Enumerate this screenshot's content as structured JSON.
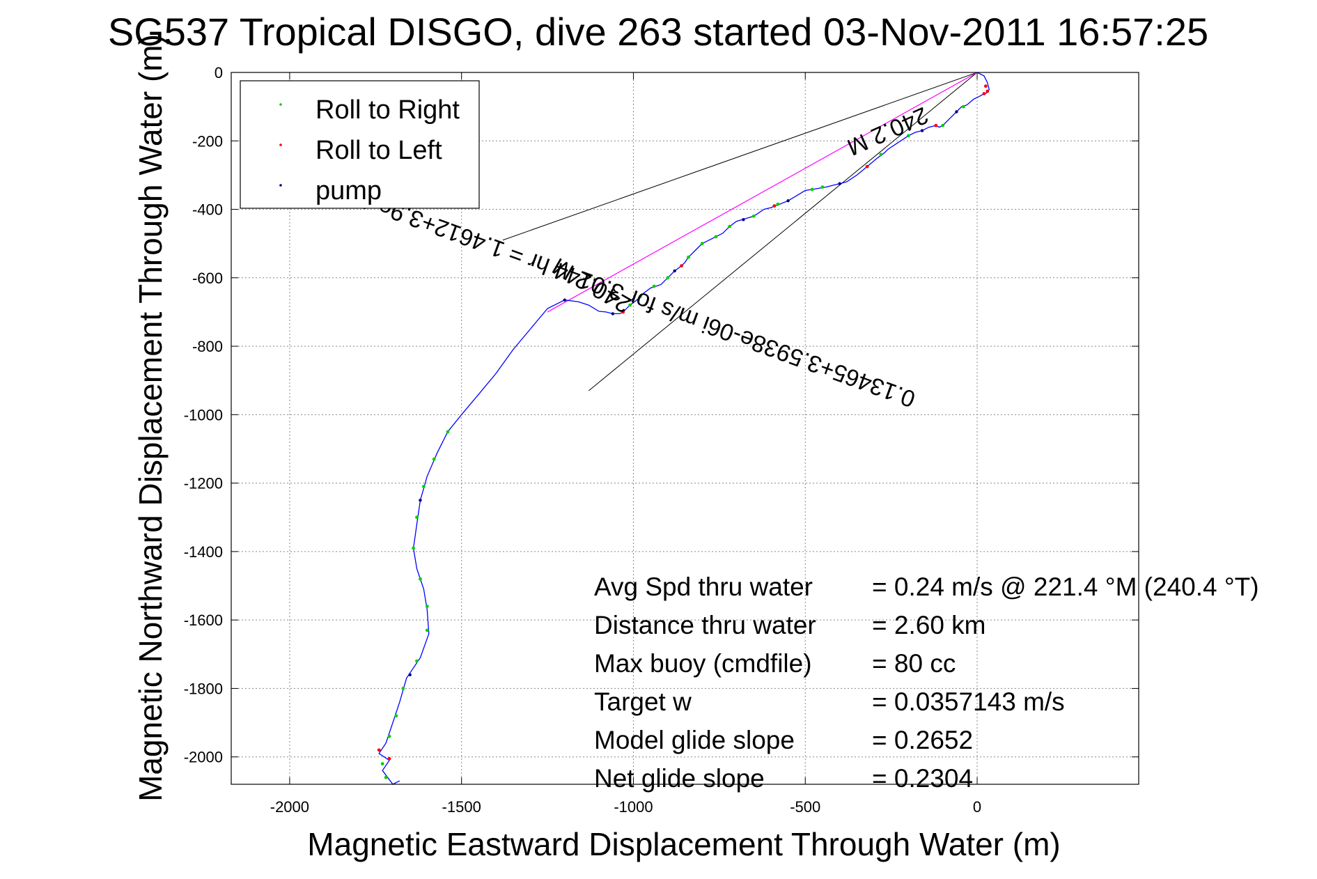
{
  "chart_data": {
    "type": "scatter",
    "title": "SG537 Tropical DISGO, dive 263 started 03-Nov-2011 16:57:25",
    "xlabel": "Magnetic Eastward Displacement Through Water (m)",
    "ylabel": "Magnetic Northward Displacement Through Water (m)",
    "xlim": [
      -2170,
      470
    ],
    "ylim": [
      -2080,
      0
    ],
    "xticks": [
      -2000,
      -1500,
      -1000,
      -500,
      0
    ],
    "yticks": [
      0,
      -200,
      -400,
      -600,
      -800,
      -1000,
      -1200,
      -1400,
      -1600,
      -1800,
      -2000
    ],
    "grid": true,
    "legend_position": "top-left",
    "legend": [
      {
        "label": "Roll to Right",
        "color": "#00d000"
      },
      {
        "label": "Roll to Left",
        "color": "#ff0000"
      },
      {
        "label": "pump",
        "color": "#000080"
      }
    ],
    "colors": {
      "track": "#0000ff",
      "average_line": "#ff00ff",
      "cone": "#000000"
    },
    "track": [
      [
        0,
        0
      ],
      [
        20,
        -10
      ],
      [
        30,
        -30
      ],
      [
        35,
        -50
      ],
      [
        28,
        -60
      ],
      [
        15,
        -65
      ],
      [
        10,
        -68
      ],
      [
        -10,
        -78
      ],
      [
        -30,
        -95
      ],
      [
        -45,
        -100
      ],
      [
        -60,
        -115
      ],
      [
        -80,
        -135
      ],
      [
        -100,
        -155
      ],
      [
        -110,
        -160
      ],
      [
        -120,
        -155
      ],
      [
        -140,
        -160
      ],
      [
        -160,
        -170
      ],
      [
        -180,
        -175
      ],
      [
        -200,
        -185
      ],
      [
        -230,
        -205
      ],
      [
        -260,
        -225
      ],
      [
        -270,
        -235
      ],
      [
        -290,
        -250
      ],
      [
        -320,
        -275
      ],
      [
        -350,
        -300
      ],
      [
        -380,
        -320
      ],
      [
        -400,
        -325
      ],
      [
        -420,
        -330
      ],
      [
        -440,
        -335
      ],
      [
        -470,
        -340
      ],
      [
        -500,
        -345
      ],
      [
        -550,
        -375
      ],
      [
        -600,
        -395
      ],
      [
        -620,
        -400
      ],
      [
        -650,
        -420
      ],
      [
        -700,
        -435
      ],
      [
        -720,
        -450
      ],
      [
        -740,
        -470
      ],
      [
        -760,
        -480
      ],
      [
        -780,
        -490
      ],
      [
        -800,
        -500
      ],
      [
        -810,
        -510
      ],
      [
        -820,
        -520
      ],
      [
        -830,
        -530
      ],
      [
        -840,
        -540
      ],
      [
        -850,
        -555
      ],
      [
        -860,
        -565
      ],
      [
        -880,
        -580
      ],
      [
        -900,
        -600
      ],
      [
        -910,
        -610
      ],
      [
        -920,
        -620
      ],
      [
        -950,
        -630
      ],
      [
        -970,
        -645
      ],
      [
        -990,
        -665
      ],
      [
        -1010,
        -680
      ],
      [
        -1030,
        -700
      ],
      [
        -1040,
        -705
      ],
      [
        -1060,
        -705
      ],
      [
        -1080,
        -700
      ],
      [
        -1100,
        -698
      ],
      [
        -1130,
        -680
      ],
      [
        -1160,
        -670
      ],
      [
        -1200,
        -665
      ],
      [
        -1250,
        -690
      ],
      [
        -1300,
        -750
      ],
      [
        -1350,
        -810
      ],
      [
        -1400,
        -880
      ],
      [
        -1450,
        -940
      ],
      [
        -1500,
        -1000
      ],
      [
        -1540,
        -1050
      ],
      [
        -1570,
        -1110
      ],
      [
        -1600,
        -1180
      ],
      [
        -1620,
        -1250
      ],
      [
        -1630,
        -1320
      ],
      [
        -1640,
        -1390
      ],
      [
        -1630,
        -1450
      ],
      [
        -1610,
        -1510
      ],
      [
        -1600,
        -1570
      ],
      [
        -1595,
        -1640
      ],
      [
        -1620,
        -1710
      ],
      [
        -1660,
        -1770
      ],
      [
        -1680,
        -1840
      ],
      [
        -1700,
        -1900
      ],
      [
        -1720,
        -1960
      ],
      [
        -1740,
        -1990
      ],
      [
        -1710,
        -2010
      ],
      [
        -1730,
        -2040
      ],
      [
        -1700,
        -2080
      ],
      [
        -1680,
        -2070
      ]
    ],
    "roll_right_points": [
      [
        -40,
        -100
      ],
      [
        -100,
        -155
      ],
      [
        -200,
        -185
      ],
      [
        -280,
        -240
      ],
      [
        -450,
        -335
      ],
      [
        -480,
        -342
      ],
      [
        -580,
        -385
      ],
      [
        -650,
        -420
      ],
      [
        -720,
        -450
      ],
      [
        -760,
        -480
      ],
      [
        -800,
        -500
      ],
      [
        -840,
        -540
      ],
      [
        -900,
        -600
      ],
      [
        -940,
        -625
      ],
      [
        -980,
        -655
      ],
      [
        -1010,
        -680
      ],
      [
        -1540,
        -1050
      ],
      [
        -1580,
        -1130
      ],
      [
        -1610,
        -1210
      ],
      [
        -1630,
        -1300
      ],
      [
        -1640,
        -1390
      ],
      [
        -1620,
        -1480
      ],
      [
        -1600,
        -1560
      ],
      [
        -1600,
        -1630
      ],
      [
        -1630,
        -1720
      ],
      [
        -1670,
        -1800
      ],
      [
        -1690,
        -1880
      ],
      [
        -1710,
        -1940
      ],
      [
        -1730,
        -2020
      ],
      [
        -1720,
        -2060
      ]
    ],
    "roll_left_points": [
      [
        25,
        -40
      ],
      [
        30,
        -55
      ],
      [
        20,
        -62
      ],
      [
        -120,
        -155
      ],
      [
        -320,
        -275
      ],
      [
        -590,
        -390
      ],
      [
        -860,
        -565
      ],
      [
        -1030,
        -700
      ],
      [
        -1740,
        -1980
      ],
      [
        -1710,
        -2005
      ]
    ],
    "pump_points": [
      [
        -60,
        -115
      ],
      [
        -160,
        -170
      ],
      [
        -400,
        -325
      ],
      [
        -550,
        -375
      ],
      [
        -680,
        -430
      ],
      [
        -880,
        -580
      ],
      [
        -1060,
        -705
      ],
      [
        -1200,
        -665
      ],
      [
        -1620,
        -1250
      ],
      [
        -1650,
        -1760
      ]
    ],
    "average_heading_line": {
      "from": [
        0,
        0
      ],
      "to": [
        -1250,
        -700
      ]
    },
    "annotations": {
      "top_distance": "240.2 M",
      "velocity": "0.13465+3.5938e-06i m/s for 3.0144 hr = 1.4612+3.9e-05i km",
      "mid_distance": "240.2 M"
    },
    "stats": [
      {
        "label": "Avg Spd thru water",
        "value": "=  0.24 m/s @ 221.4  °M (240.4  °T)"
      },
      {
        "label": "Distance thru water",
        "value": "=  2.60 km"
      },
      {
        "label": "Max buoy (cmdfile)",
        "value": "= 80 cc"
      },
      {
        "label": "Target w",
        "value": "= 0.0357143 m/s"
      },
      {
        "label": "Model glide slope",
        "value": "= 0.2652"
      },
      {
        "label": "Net glide slope",
        "value": "= 0.2304"
      }
    ]
  }
}
